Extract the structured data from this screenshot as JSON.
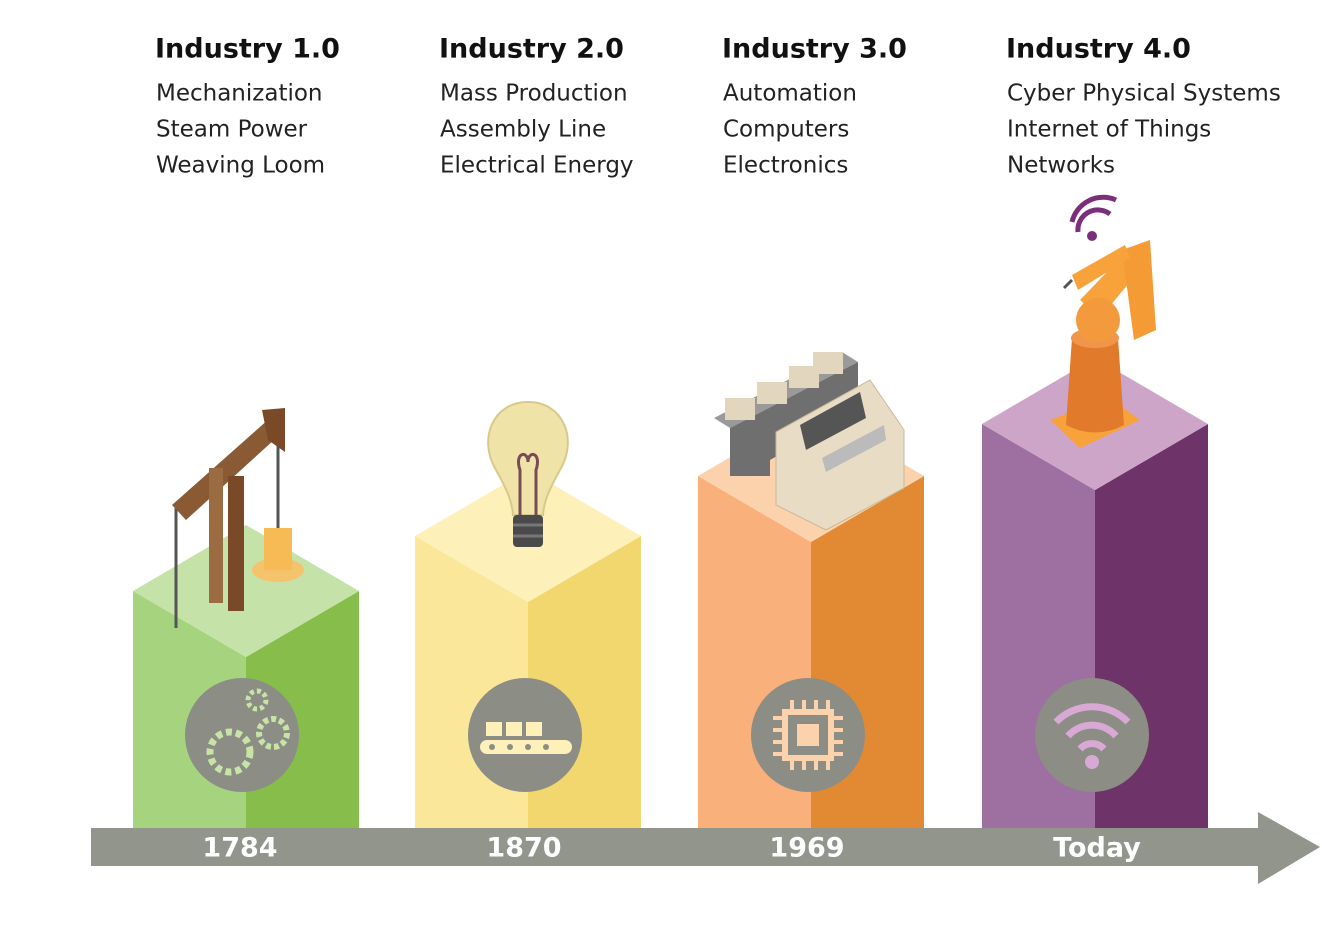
{
  "stages": [
    {
      "title": "Industry 1.0",
      "items": [
        "Mechanization",
        "Steam Power",
        "Weaving Loom"
      ],
      "year": "1784"
    },
    {
      "title": "Industry 2.0",
      "items": [
        "Mass Production",
        "Assembly Line",
        "Electrical Energy"
      ],
      "year": "1870"
    },
    {
      "title": "Industry 3.0",
      "items": [
        "Automation",
        "Computers",
        "Electronics"
      ],
      "year": "1969"
    },
    {
      "title": "Industry 4.0",
      "items": [
        "Cyber Physical Systems",
        "Internet of Things",
        "Networks"
      ],
      "year": "Today"
    }
  ]
}
